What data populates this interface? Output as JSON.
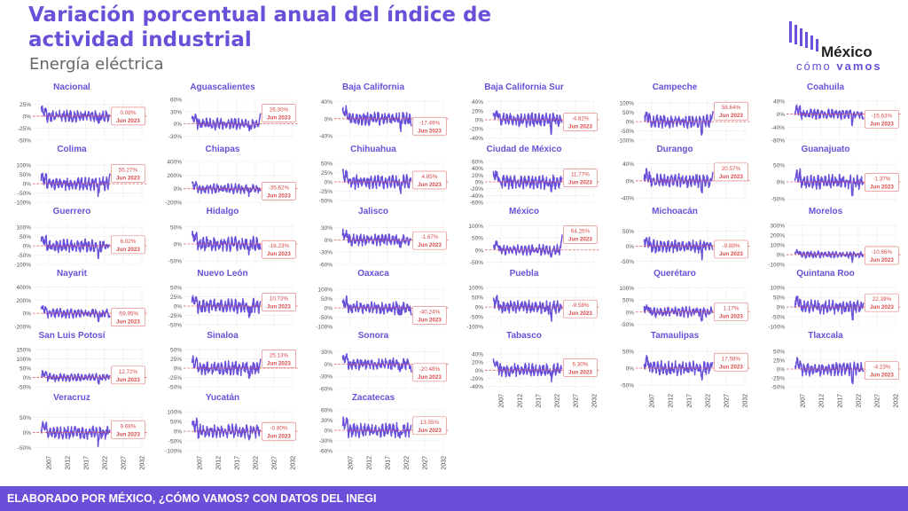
{
  "header": {
    "title": "Variación porcentual anual del índice de actividad industrial",
    "subtitle": "Energía eléctrica"
  },
  "logo": {
    "line1": "México",
    "line2_light": "cómo",
    "line2_bold": "vamos"
  },
  "footer": {
    "text": "ELABORADO POR MÉXICO, ¿CÓMO VAMOS? CON DATOS DEL INEGI"
  },
  "colors": {
    "accent": "#6a4fd8",
    "line": "#6a4fd8",
    "reference": "#e45b5b",
    "label_border": "#e88b8b",
    "label_text": "#d94a4a"
  },
  "chart_data": {
    "type": "line",
    "layout": "small-multiples",
    "xlim": [
      2003,
      2032
    ],
    "xticks": [
      2007,
      2012,
      2017,
      2022,
      2027,
      2032
    ],
    "reference_line": 0,
    "last_period": "Jun 2023",
    "panels": [
      {
        "name": "Nacional",
        "last": "0.08%",
        "yticks": [
          "25%",
          "0%",
          "-25%",
          "-50%"
        ],
        "ylim": [
          -50,
          35
        ]
      },
      {
        "name": "Aguascalientes",
        "last": "26.30%",
        "yticks": [
          "60%",
          "30%",
          "0%",
          "-30%"
        ],
        "ylim": [
          -40,
          60
        ]
      },
      {
        "name": "Baja California",
        "last": "-17.49%",
        "yticks": [
          "40%",
          "0%",
          "-40%"
        ],
        "ylim": [
          -50,
          45
        ]
      },
      {
        "name": "Baja California Sur",
        "last": "-4.82%",
        "yticks": [
          "40%",
          "20%",
          "0%",
          "-20%",
          "-40%"
        ],
        "ylim": [
          -45,
          45
        ]
      },
      {
        "name": "Campeche",
        "last": "56.64%",
        "yticks": [
          "100%",
          "50%",
          "0%",
          "-50%",
          "-100%"
        ],
        "ylim": [
          -100,
          120
        ]
      },
      {
        "name": "Coahuila",
        "last": "-15.63%",
        "yticks": [
          "40%",
          "0%",
          "-40%",
          "-80%"
        ],
        "ylim": [
          -80,
          45
        ]
      },
      {
        "name": "Colima",
        "last": "55.27%",
        "yticks": [
          "100%",
          "50%",
          "0%",
          "-50%",
          "-100%"
        ],
        "ylim": [
          -100,
          120
        ]
      },
      {
        "name": "Chiapas",
        "last": "-35.62%",
        "yticks": [
          "400%",
          "200%",
          "0%",
          "-200%"
        ],
        "ylim": [
          -200,
          400
        ]
      },
      {
        "name": "Chihuahua",
        "last": "4.85%",
        "yticks": [
          "50%",
          "25%",
          "0%",
          "-25%",
          "-50%"
        ],
        "ylim": [
          -55,
          55
        ]
      },
      {
        "name": "Ciudad de México",
        "last": "11.77%",
        "yticks": [
          "60%",
          "40%",
          "20%",
          "0%",
          "-20%",
          "-40%",
          "-60%"
        ],
        "ylim": [
          -60,
          60
        ]
      },
      {
        "name": "Durango",
        "last": "20.57%",
        "yticks": [
          "40%",
          "0%",
          "-40%"
        ],
        "ylim": [
          -50,
          45
        ]
      },
      {
        "name": "Guanajuato",
        "last": "-1.37%",
        "yticks": [
          "50%",
          "0%",
          "-50%"
        ],
        "ylim": [
          -60,
          60
        ]
      },
      {
        "name": "Guerrero",
        "last": "6.02%",
        "yticks": [
          "100%",
          "50%",
          "0%",
          "-50%",
          "-100%"
        ],
        "ylim": [
          -100,
          120
        ]
      },
      {
        "name": "Hidalgo",
        "last": "-16.23%",
        "yticks": [
          "50%",
          "0%",
          "-50%"
        ],
        "ylim": [
          -60,
          60
        ]
      },
      {
        "name": "Jalisco",
        "last": "-1.67%",
        "yticks": [
          "30%",
          "0%",
          "-30%",
          "-60%"
        ],
        "ylim": [
          -60,
          40
        ]
      },
      {
        "name": "México",
        "last": "64.25%",
        "yticks": [
          "100%",
          "50%",
          "0%",
          "-50%"
        ],
        "ylim": [
          -60,
          110
        ]
      },
      {
        "name": "Michoacán",
        "last": "-9.88%",
        "yticks": [
          "50%",
          "0%",
          "-50%"
        ],
        "ylim": [
          -60,
          75
        ]
      },
      {
        "name": "Morelos",
        "last": "-10.66%",
        "yticks": [
          "300%",
          "200%",
          "100%",
          "0%",
          "-100%"
        ],
        "ylim": [
          -100,
          320
        ]
      },
      {
        "name": "Nayarit",
        "last": "-59.95%",
        "yticks": [
          "400%",
          "200%",
          "0%",
          "-200%"
        ],
        "ylim": [
          -200,
          420
        ]
      },
      {
        "name": "Nuevo León",
        "last": "10.73%",
        "yticks": [
          "50%",
          "25%",
          "0%",
          "-25%",
          "-50%"
        ],
        "ylim": [
          -55,
          55
        ]
      },
      {
        "name": "Oaxaca",
        "last": "-40.24%",
        "yticks": [
          "100%",
          "50%",
          "0%",
          "-50%",
          "-100%"
        ],
        "ylim": [
          -100,
          120
        ]
      },
      {
        "name": "Puebla",
        "last": "-9.58%",
        "yticks": [
          "100%",
          "50%",
          "0%",
          "-50%",
          "-100%"
        ],
        "ylim": [
          -100,
          110
        ]
      },
      {
        "name": "Querétaro",
        "last": "1.17%",
        "yticks": [
          "100%",
          "50%",
          "0%",
          "-50%"
        ],
        "ylim": [
          -60,
          110
        ]
      },
      {
        "name": "Quintana Roo",
        "last": "22.39%",
        "yticks": [
          "100%",
          "50%",
          "0%",
          "-50%",
          "-100%"
        ],
        "ylim": [
          -100,
          110
        ]
      },
      {
        "name": "San Luis Potosí",
        "last": "12.72%",
        "yticks": [
          "150%",
          "100%",
          "50%",
          "0%",
          "-50%"
        ],
        "ylim": [
          -60,
          160
        ]
      },
      {
        "name": "Sinaloa",
        "last": "25.13%",
        "yticks": [
          "50%",
          "25%",
          "0%",
          "-25%",
          "-50%"
        ],
        "ylim": [
          -55,
          55
        ]
      },
      {
        "name": "Sonora",
        "last": "-20.48%",
        "yticks": [
          "30%",
          "0%",
          "-30%",
          "-60%"
        ],
        "ylim": [
          -60,
          40
        ]
      },
      {
        "name": "Tabasco",
        "last": "6.30%",
        "yticks": [
          "40%",
          "20%",
          "0%",
          "-20%",
          "-40%"
        ],
        "ylim": [
          -45,
          55
        ]
      },
      {
        "name": "Tamaulipas",
        "last": "17.58%",
        "yticks": [
          "50%",
          "0%",
          "-50%"
        ],
        "ylim": [
          -60,
          60
        ]
      },
      {
        "name": "Tlaxcala",
        "last": "-4.23%",
        "yticks": [
          "50%",
          "25%",
          "0%",
          "-25%",
          "-50%"
        ],
        "ylim": [
          -55,
          60
        ]
      },
      {
        "name": "Veracruz",
        "last": "9.68%",
        "yticks": [
          "50%",
          "0%",
          "-50%"
        ],
        "ylim": [
          -60,
          75
        ]
      },
      {
        "name": "Yucatán",
        "last": "-0.80%",
        "yticks": [
          "100%",
          "50%",
          "0%",
          "-50%",
          "-100%"
        ],
        "ylim": [
          -100,
          110
        ]
      },
      {
        "name": "Zacatecas",
        "last": "13.55%",
        "yticks": [
          "60%",
          "30%",
          "0%",
          "-30%",
          "-60%"
        ],
        "ylim": [
          -60,
          60
        ]
      }
    ]
  }
}
